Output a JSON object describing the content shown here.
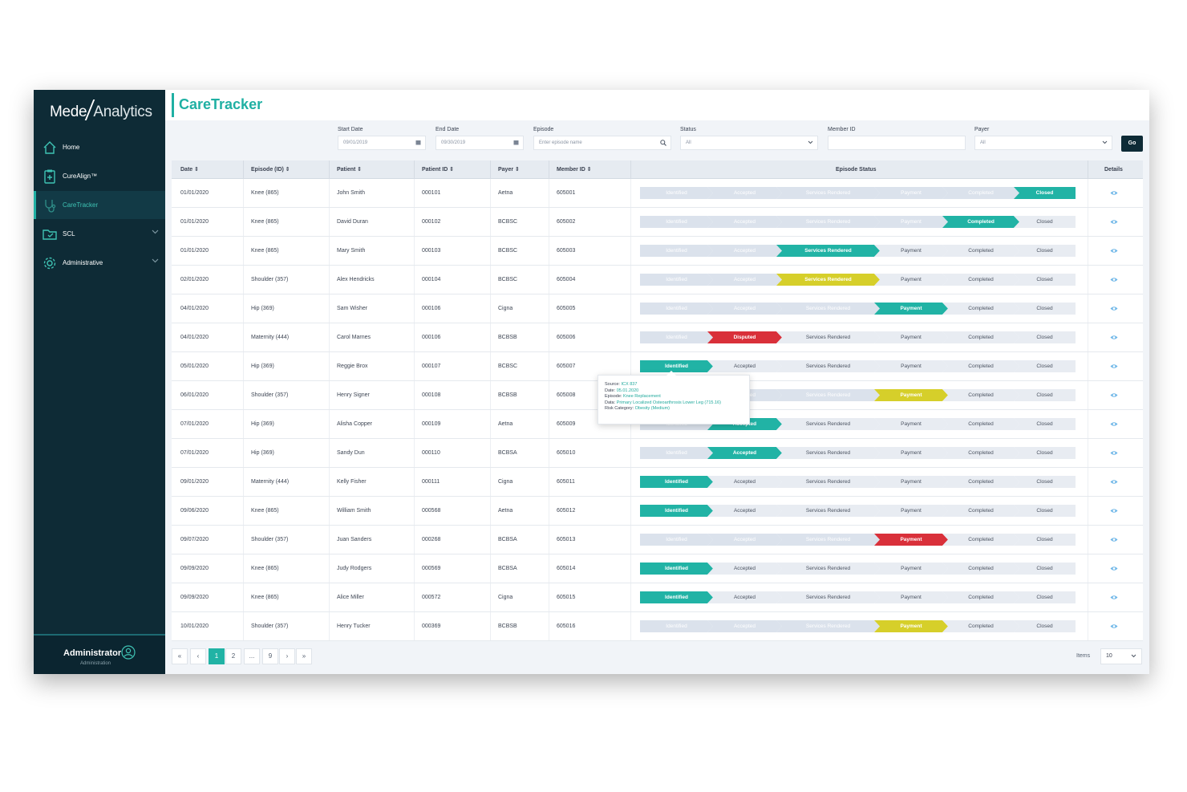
{
  "brand": {
    "name_left": "Mede",
    "name_right": "Analytics"
  },
  "sidebar": {
    "items": [
      {
        "label": "Home",
        "icon": "home-icon"
      },
      {
        "label": "CureAlign™",
        "icon": "clipboard-plus-icon"
      },
      {
        "label": "CareTracker",
        "icon": "stethoscope-icon",
        "active": true
      },
      {
        "label": "SCL",
        "icon": "folder-icon",
        "expandable": true
      },
      {
        "label": "Administrative",
        "icon": "gear-icon",
        "expandable": true
      }
    ],
    "user": {
      "name": "Administrator",
      "role": "Administration"
    }
  },
  "page": {
    "title": "CareTracker"
  },
  "filters": {
    "start_date": {
      "label": "Start Date",
      "value": "09/01/2019"
    },
    "end_date": {
      "label": "End Date",
      "value": "09/30/2019"
    },
    "episode": {
      "label": "Episode",
      "placeholder": "Enter episode name"
    },
    "status": {
      "label": "Status",
      "value": "All"
    },
    "member_id": {
      "label": "Member ID",
      "value": ""
    },
    "payer": {
      "label": "Payer",
      "value": "All"
    },
    "go_label": "Go"
  },
  "table": {
    "columns": [
      "Date ⇕",
      "Episode (ID) ⇕",
      "Patient ⇕",
      "Patient ID ⇕",
      "Payer ⇕",
      "Member ID ⇕",
      "Episode Status",
      "Details"
    ],
    "stages": [
      "Identified",
      "Accepted",
      "Services Rendered",
      "Payment",
      "Completed",
      "Closed"
    ],
    "status_colors": {
      "done": "#21b3a5",
      "warn": "#d6cf2a",
      "error": "#d9303a",
      "faded": "#dbe2ec",
      "pending": "#e8ecf2"
    },
    "rows": [
      {
        "date": "01/01/2020",
        "episode": "Knee (865)",
        "patient": "John Smith",
        "patient_id": "000101",
        "payer": "Aetna",
        "member_id": "605001",
        "stages": [
          {
            "label": "Identified",
            "state": "faded"
          },
          {
            "label": "Accepted",
            "state": "faded"
          },
          {
            "label": "Services Rendered",
            "state": "faded"
          },
          {
            "label": "Payment",
            "state": "faded"
          },
          {
            "label": "Completed",
            "state": "faded"
          },
          {
            "label": "Closed",
            "state": "done"
          }
        ]
      },
      {
        "date": "01/01/2020",
        "episode": "Knee (865)",
        "patient": "David Duran",
        "patient_id": "000102",
        "payer": "BCBSC",
        "member_id": "605002",
        "stages": [
          {
            "label": "Identified",
            "state": "faded"
          },
          {
            "label": "Accepted",
            "state": "faded"
          },
          {
            "label": "Services Rendered",
            "state": "faded"
          },
          {
            "label": "Payment",
            "state": "faded"
          },
          {
            "label": "Completed",
            "state": "done"
          },
          {
            "label": "Closed",
            "state": "pending"
          }
        ]
      },
      {
        "date": "01/01/2020",
        "episode": "Knee (865)",
        "patient": "Mary Smith",
        "patient_id": "000103",
        "payer": "BCBSC",
        "member_id": "605003",
        "stages": [
          {
            "label": "Identified",
            "state": "faded"
          },
          {
            "label": "Accepted",
            "state": "faded"
          },
          {
            "label": "Services Rendered",
            "state": "done"
          },
          {
            "label": "Payment",
            "state": "pending"
          },
          {
            "label": "Completed",
            "state": "pending"
          },
          {
            "label": "Closed",
            "state": "pending"
          }
        ]
      },
      {
        "date": "02/01/2020",
        "episode": "Shoulder (357)",
        "patient": "Alex Hendricks",
        "patient_id": "000104",
        "payer": "BCBSC",
        "member_id": "605004",
        "stages": [
          {
            "label": "Identified",
            "state": "faded"
          },
          {
            "label": "Accepted",
            "state": "faded"
          },
          {
            "label": "Services Rendered",
            "state": "warn"
          },
          {
            "label": "Payment",
            "state": "pending"
          },
          {
            "label": "Completed",
            "state": "pending"
          },
          {
            "label": "Closed",
            "state": "pending"
          }
        ]
      },
      {
        "date": "04/01/2020",
        "episode": "Hip (369)",
        "patient": "Sam Wisher",
        "patient_id": "000106",
        "payer": "Cigna",
        "member_id": "605005",
        "stages": [
          {
            "label": "Identified",
            "state": "faded"
          },
          {
            "label": "Accepted",
            "state": "faded"
          },
          {
            "label": "Services Rendered",
            "state": "faded"
          },
          {
            "label": "Payment",
            "state": "done"
          },
          {
            "label": "Completed",
            "state": "pending"
          },
          {
            "label": "Closed",
            "state": "pending"
          }
        ]
      },
      {
        "date": "04/01/2020",
        "episode": "Maternity (444)",
        "patient": "Carol Marnes",
        "patient_id": "000106",
        "payer": "BCBSB",
        "member_id": "605006",
        "stages": [
          {
            "label": "Identified",
            "state": "faded"
          },
          {
            "label": "Disputed",
            "state": "error"
          },
          {
            "label": "Services Rendered",
            "state": "pending"
          },
          {
            "label": "Payment",
            "state": "pending"
          },
          {
            "label": "Completed",
            "state": "pending"
          },
          {
            "label": "Closed",
            "state": "pending"
          }
        ]
      },
      {
        "date": "05/01/2020",
        "episode": "Hip (369)",
        "patient": "Reggie Brox",
        "patient_id": "000107",
        "payer": "BCBSC",
        "member_id": "605007",
        "stages": [
          {
            "label": "Identified",
            "state": "done"
          },
          {
            "label": "Accepted",
            "state": "pending"
          },
          {
            "label": "Services Rendered",
            "state": "pending"
          },
          {
            "label": "Payment",
            "state": "pending"
          },
          {
            "label": "Completed",
            "state": "pending"
          },
          {
            "label": "Closed",
            "state": "pending"
          }
        ]
      },
      {
        "date": "06/01/2020",
        "episode": "Shoulder (357)",
        "patient": "Henry Signer",
        "patient_id": "000108",
        "payer": "BCBSB",
        "member_id": "605008",
        "stages": [
          {
            "label": "Identified",
            "state": "faded"
          },
          {
            "label": "Accepted",
            "state": "faded"
          },
          {
            "label": "Services Rendered",
            "state": "faded"
          },
          {
            "label": "Payment",
            "state": "warn"
          },
          {
            "label": "Completed",
            "state": "pending"
          },
          {
            "label": "Closed",
            "state": "pending"
          }
        ]
      },
      {
        "date": "07/01/2020",
        "episode": "Hip (369)",
        "patient": "Alisha Copper",
        "patient_id": "000109",
        "payer": "Aetna",
        "member_id": "605009",
        "stages": [
          {
            "label": "Identified",
            "state": "faded"
          },
          {
            "label": "Accepted",
            "state": "done"
          },
          {
            "label": "Services Rendered",
            "state": "pending"
          },
          {
            "label": "Payment",
            "state": "pending"
          },
          {
            "label": "Completed",
            "state": "pending"
          },
          {
            "label": "Closed",
            "state": "pending"
          }
        ]
      },
      {
        "date": "07/01/2020",
        "episode": "Hip (369)",
        "patient": "Sandy Dun",
        "patient_id": "000110",
        "payer": "BCBSA",
        "member_id": "605010",
        "stages": [
          {
            "label": "Identified",
            "state": "faded"
          },
          {
            "label": "Accepted",
            "state": "done"
          },
          {
            "label": "Services Rendered",
            "state": "pending"
          },
          {
            "label": "Payment",
            "state": "pending"
          },
          {
            "label": "Completed",
            "state": "pending"
          },
          {
            "label": "Closed",
            "state": "pending"
          }
        ]
      },
      {
        "date": "09/01/2020",
        "episode": "Maternity (444)",
        "patient": "Kelly Fisher",
        "patient_id": "000111",
        "payer": "Cigna",
        "member_id": "605011",
        "stages": [
          {
            "label": "Identified",
            "state": "done"
          },
          {
            "label": "Accepted",
            "state": "pending"
          },
          {
            "label": "Services Rendered",
            "state": "pending"
          },
          {
            "label": "Payment",
            "state": "pending"
          },
          {
            "label": "Completed",
            "state": "pending"
          },
          {
            "label": "Closed",
            "state": "pending"
          }
        ]
      },
      {
        "date": "09/06/2020",
        "episode": "Knee (865)",
        "patient": "William Smith",
        "patient_id": "000568",
        "payer": "Aetna",
        "member_id": "605012",
        "stages": [
          {
            "label": "Identified",
            "state": "done"
          },
          {
            "label": "Accepted",
            "state": "pending"
          },
          {
            "label": "Services Rendered",
            "state": "pending"
          },
          {
            "label": "Payment",
            "state": "pending"
          },
          {
            "label": "Completed",
            "state": "pending"
          },
          {
            "label": "Closed",
            "state": "pending"
          }
        ]
      },
      {
        "date": "09/07/2020",
        "episode": "Shoulder (357)",
        "patient": "Juan Sanders",
        "patient_id": "000268",
        "payer": "BCBSA",
        "member_id": "605013",
        "stages": [
          {
            "label": "Identified",
            "state": "faded"
          },
          {
            "label": "Accepted",
            "state": "faded"
          },
          {
            "label": "Services Rendered",
            "state": "faded"
          },
          {
            "label": "Payment",
            "state": "error"
          },
          {
            "label": "Completed",
            "state": "pending"
          },
          {
            "label": "Closed",
            "state": "pending"
          }
        ]
      },
      {
        "date": "09/09/2020",
        "episode": "Knee (865)",
        "patient": "Judy Rodgers",
        "patient_id": "000569",
        "payer": "BCBSA",
        "member_id": "605014",
        "stages": [
          {
            "label": "Identified",
            "state": "done"
          },
          {
            "label": "Accepted",
            "state": "pending"
          },
          {
            "label": "Services Rendered",
            "state": "pending"
          },
          {
            "label": "Payment",
            "state": "pending"
          },
          {
            "label": "Completed",
            "state": "pending"
          },
          {
            "label": "Closed",
            "state": "pending"
          }
        ]
      },
      {
        "date": "09/09/2020",
        "episode": "Knee (865)",
        "patient": "Alice Miller",
        "patient_id": "000572",
        "payer": "Cigna",
        "member_id": "605015",
        "stages": [
          {
            "label": "Identified",
            "state": "done"
          },
          {
            "label": "Accepted",
            "state": "pending"
          },
          {
            "label": "Services Rendered",
            "state": "pending"
          },
          {
            "label": "Payment",
            "state": "pending"
          },
          {
            "label": "Completed",
            "state": "pending"
          },
          {
            "label": "Closed",
            "state": "pending"
          }
        ]
      },
      {
        "date": "10/01/2020",
        "episode": "Shoulder (357)",
        "patient": "Henry Tucker",
        "patient_id": "000369",
        "payer": "BCBSB",
        "member_id": "605016",
        "stages": [
          {
            "label": "Identified",
            "state": "faded"
          },
          {
            "label": "Accepted",
            "state": "faded"
          },
          {
            "label": "Services Rendered",
            "state": "faded"
          },
          {
            "label": "Payment",
            "state": "warn"
          },
          {
            "label": "Completed",
            "state": "pending"
          },
          {
            "label": "Closed",
            "state": "pending"
          }
        ]
      }
    ]
  },
  "tooltip": {
    "source_label": "Source:",
    "source_value": "ICX 837",
    "date_label": "Date:",
    "date_value": "05.01.2020",
    "episode_label": "Episode:",
    "episode_value": "Knee Replacement",
    "data_label": "Data:",
    "data_value": "Primary Localized Osteoarthrosis Lower Leg (715.16)",
    "risk_label": "Risk Category:",
    "risk_value": "Obesity (Medium)"
  },
  "pagination": {
    "first": "«",
    "prev": "‹",
    "pages": [
      "1",
      "2",
      "...",
      "9"
    ],
    "current": "1",
    "next": "›",
    "last": "»",
    "items_label": "Items",
    "items_value": "10"
  }
}
